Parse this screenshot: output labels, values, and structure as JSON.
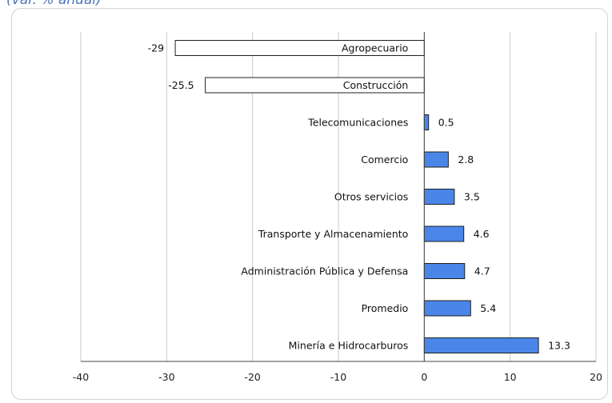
{
  "header": {
    "subtitle": "(var. % anual)"
  },
  "chart_data": {
    "type": "bar",
    "orientation": "horizontal",
    "categories": [
      "Agropecuario",
      "Construcción",
      "Telecomunicaciones",
      "Comercio",
      "Otros servicios",
      "Transporte y Almacenamiento",
      "Administración Pública y Defensa",
      "Promedio",
      "Minería e Hidrocarburos"
    ],
    "values": [
      -29,
      -25.5,
      0.5,
      2.8,
      3.5,
      4.6,
      4.7,
      5.4,
      13.3
    ],
    "value_labels": [
      "-29",
      "-25.5",
      "0.5",
      "2.8",
      "3.5",
      "4.6",
      "4.7",
      "5.4",
      "13.3"
    ],
    "xlim": [
      -40,
      20
    ],
    "xticks": [
      -40,
      -30,
      -20,
      -10,
      0,
      10,
      20
    ],
    "xtick_labels": [
      "-40",
      "-30",
      "-20",
      "-10",
      "0",
      "10",
      "20"
    ],
    "grid": "vertical",
    "colors": {
      "positive": "#4a86e8",
      "negative_fill": "#ffffff",
      "bar_stroke": "#1f1f1f",
      "grid": "#c8c8c8"
    }
  }
}
